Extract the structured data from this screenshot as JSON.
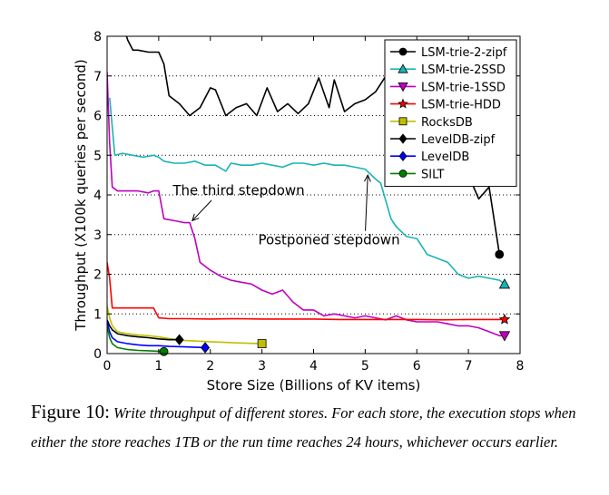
{
  "caption": {
    "label": "Figure 10:",
    "text": "Write throughput of different stores.  For each store, the execution stops when either the store reaches 1TB or the run time reaches 24 hours, whichever occurs earlier."
  },
  "chart_data": {
    "type": "line",
    "title": "",
    "xlabel": "Store Size (Billions of KV items)",
    "ylabel": "Throughput (X100k queries per second)",
    "xlim": [
      0,
      8
    ],
    "ylim": [
      0,
      8
    ],
    "xticks": [
      "0",
      "1",
      "2",
      "3",
      "4",
      "5",
      "6",
      "7",
      "8"
    ],
    "yticks": [
      "0",
      "1",
      "2",
      "3",
      "4",
      "5",
      "6",
      "7",
      "8"
    ],
    "grid": "horizontal dotted",
    "legend_position": "top-right",
    "annotations": [
      {
        "text": "The third stepdown",
        "x": 2.55,
        "y": 4.0,
        "arrow_to": [
          1.65,
          3.35
        ]
      },
      {
        "text": "Postponed stepdown",
        "x": 4.3,
        "y": 2.75,
        "arrow_to": [
          5.05,
          4.5
        ]
      }
    ],
    "series": [
      {
        "name": "LSM-trie-2-zipf",
        "color": "#000000",
        "marker": "circle",
        "x": [
          0.3,
          0.4,
          0.5,
          0.6,
          0.8,
          0.9,
          1.0,
          1.1,
          1.2,
          1.4,
          1.6,
          1.8,
          2.0,
          2.1,
          2.3,
          2.5,
          2.7,
          2.9,
          3.1,
          3.3,
          3.5,
          3.7,
          3.9,
          4.1,
          4.3,
          4.4,
          4.6,
          4.8,
          5.0,
          5.2,
          5.4,
          5.6,
          5.8,
          6.0,
          6.2,
          6.4,
          6.6,
          6.8,
          7.0,
          7.2,
          7.4,
          7.6
        ],
        "y": [
          8.3,
          7.9,
          7.65,
          7.65,
          7.6,
          7.6,
          7.6,
          7.3,
          6.5,
          6.3,
          6.0,
          6.2,
          6.7,
          6.65,
          6.0,
          6.2,
          6.3,
          6.0,
          6.7,
          6.1,
          6.3,
          6.05,
          6.3,
          6.95,
          6.2,
          6.9,
          6.1,
          6.3,
          6.4,
          6.6,
          7.0,
          6.1,
          6.4,
          6.8,
          6.3,
          6.8,
          6.2,
          5.7,
          4.5,
          3.9,
          4.2,
          2.5
        ]
      },
      {
        "name": "LSM-trie-2SSD",
        "color": "#1ab3b3",
        "marker": "triangle-up",
        "x": [
          0.05,
          0.15,
          0.3,
          0.5,
          0.7,
          0.9,
          1.0,
          1.1,
          1.3,
          1.5,
          1.7,
          1.9,
          2.1,
          2.3,
          2.4,
          2.6,
          2.8,
          3.0,
          3.2,
          3.4,
          3.6,
          3.8,
          4.0,
          4.2,
          4.4,
          4.6,
          4.8,
          5.0,
          5.2,
          5.3,
          5.5,
          5.6,
          5.8,
          6.0,
          6.2,
          6.4,
          6.6,
          6.8,
          7.0,
          7.2,
          7.4,
          7.6,
          7.7
        ],
        "y": [
          6.45,
          5.0,
          5.05,
          5.0,
          4.95,
          5.0,
          4.95,
          4.85,
          4.8,
          4.8,
          4.85,
          4.75,
          4.75,
          4.6,
          4.8,
          4.75,
          4.75,
          4.8,
          4.75,
          4.7,
          4.8,
          4.8,
          4.75,
          4.8,
          4.75,
          4.75,
          4.7,
          4.65,
          4.4,
          4.3,
          3.4,
          3.2,
          2.95,
          2.9,
          2.5,
          2.4,
          2.3,
          2.0,
          1.9,
          1.95,
          1.9,
          1.85,
          1.75
        ]
      },
      {
        "name": "LSM-trie-1SSD",
        "color": "#bf00bf",
        "marker": "triangle-down",
        "x": [
          0.0,
          0.05,
          0.1,
          0.2,
          0.4,
          0.6,
          0.8,
          0.9,
          1.0,
          1.1,
          1.3,
          1.5,
          1.6,
          1.7,
          1.8,
          2.0,
          2.2,
          2.4,
          2.6,
          2.8,
          3.0,
          3.2,
          3.4,
          3.6,
          3.8,
          4.0,
          4.2,
          4.4,
          4.6,
          4.8,
          5.0,
          5.2,
          5.4,
          5.6,
          5.8,
          6.0,
          6.2,
          6.4,
          6.6,
          6.8,
          7.0,
          7.2,
          7.4,
          7.6,
          7.7
        ],
        "y": [
          7.1,
          5.3,
          4.2,
          4.1,
          4.1,
          4.1,
          4.05,
          4.1,
          4.1,
          3.4,
          3.35,
          3.3,
          3.3,
          2.9,
          2.3,
          2.1,
          1.95,
          1.85,
          1.8,
          1.75,
          1.6,
          1.5,
          1.6,
          1.3,
          1.1,
          1.1,
          0.95,
          1.0,
          0.95,
          0.9,
          0.95,
          0.9,
          0.85,
          0.95,
          0.85,
          0.8,
          0.8,
          0.8,
          0.75,
          0.7,
          0.7,
          0.65,
          0.55,
          0.45,
          0.45
        ]
      },
      {
        "name": "LSM-trie-HDD",
        "color": "#ff0000",
        "marker": "star",
        "x": [
          0.0,
          0.05,
          0.1,
          0.2,
          0.4,
          0.6,
          0.8,
          0.9,
          1.0,
          1.2,
          1.5,
          2.0,
          2.5,
          3.0,
          3.5,
          4.0,
          4.5,
          5.0,
          5.5,
          6.0,
          6.5,
          7.0,
          7.5,
          7.7
        ],
        "y": [
          2.3,
          1.9,
          1.15,
          1.15,
          1.15,
          1.15,
          1.15,
          1.15,
          0.9,
          0.88,
          0.88,
          0.87,
          0.88,
          0.87,
          0.87,
          0.87,
          0.86,
          0.86,
          0.86,
          0.86,
          0.85,
          0.86,
          0.86,
          0.86
        ]
      },
      {
        "name": "RocksDB",
        "color": "#bfbf00",
        "marker": "square",
        "x": [
          0.0,
          0.05,
          0.1,
          0.2,
          0.4,
          0.6,
          0.8,
          1.0,
          1.2,
          1.5,
          2.0,
          2.5,
          3.0
        ],
        "y": [
          1.2,
          0.9,
          0.7,
          0.55,
          0.5,
          0.47,
          0.45,
          0.42,
          0.38,
          0.33,
          0.3,
          0.27,
          0.25
        ]
      },
      {
        "name": "LevelDB-zipf",
        "color": "#000000",
        "marker": "diamond",
        "x": [
          0.0,
          0.05,
          0.1,
          0.2,
          0.4,
          0.6,
          0.8,
          1.0,
          1.2,
          1.4
        ],
        "y": [
          0.85,
          0.7,
          0.6,
          0.5,
          0.45,
          0.42,
          0.4,
          0.37,
          0.35,
          0.35
        ]
      },
      {
        "name": "LevelDB",
        "color": "#0000ff",
        "marker": "diamond",
        "x": [
          0.0,
          0.05,
          0.1,
          0.2,
          0.4,
          0.6,
          0.8,
          1.0,
          1.2,
          1.5,
          1.9
        ],
        "y": [
          0.8,
          0.55,
          0.4,
          0.3,
          0.25,
          0.22,
          0.2,
          0.2,
          0.18,
          0.17,
          0.15
        ]
      },
      {
        "name": "SILT",
        "color": "#007f00",
        "marker": "circle",
        "x": [
          0.0,
          0.05,
          0.1,
          0.2,
          0.4,
          0.6,
          0.8,
          1.0,
          1.1
        ],
        "y": [
          0.7,
          0.4,
          0.25,
          0.15,
          0.1,
          0.08,
          0.07,
          0.06,
          0.05
        ]
      }
    ]
  }
}
